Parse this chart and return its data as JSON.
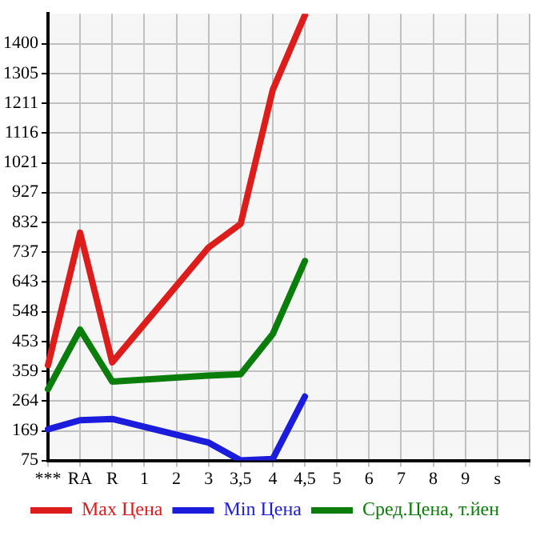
{
  "chart_data": {
    "type": "line",
    "categories": [
      "***",
      "RA",
      "R",
      "1",
      "2",
      "3",
      "3,5",
      "4",
      "4,5",
      "5",
      "6",
      "7",
      "8",
      "9",
      "s",
      null
    ],
    "series": [
      {
        "name": "Max Цена",
        "color": "#dd1c1c",
        "values": [
          378,
          799,
          387,
          null,
          null,
          752,
          827,
          1253,
          1490,
          null,
          null,
          null,
          null,
          null,
          null,
          null
        ]
      },
      {
        "name": "Min Цена",
        "color": "#1c1cdd",
        "values": [
          174,
          203,
          207,
          null,
          null,
          132,
          75,
          80,
          278,
          null,
          null,
          null,
          null,
          null,
          null,
          null
        ]
      },
      {
        "name": "Сред.Цена, т.йен",
        "color": "#0a7d0a",
        "values": [
          302,
          491,
          326,
          null,
          null,
          345,
          349,
          477,
          709,
          null,
          null,
          null,
          null,
          null,
          null,
          null
        ]
      }
    ],
    "ylim": [
      75,
      1495
    ],
    "yticks": [
      75,
      169,
      264,
      359,
      453,
      548,
      643,
      737,
      832,
      927,
      1021,
      1116,
      1211,
      1305,
      1400
    ],
    "grid": true,
    "legend": "bottom",
    "marker": "none",
    "line_style": "solid"
  }
}
